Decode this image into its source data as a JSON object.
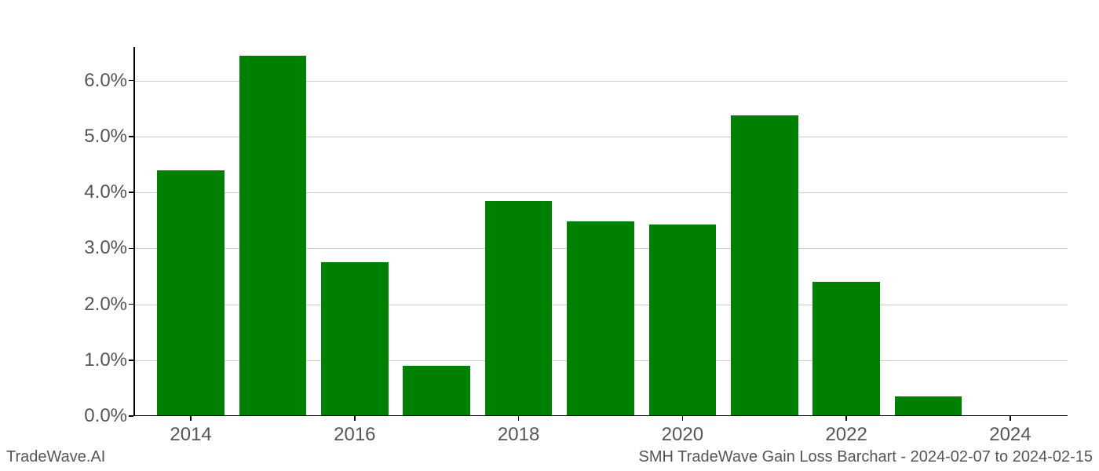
{
  "chart": {
    "type": "bar",
    "background_color": "#ffffff",
    "grid_color": "#cccccc",
    "axis_color": "#000000",
    "tick_label_color": "#555555",
    "tick_label_fontsize": 24,
    "footer_fontsize": 20,
    "ylim_min": 0.0,
    "ylim_max": 6.6,
    "y_ticks": [
      {
        "value": 0.0,
        "label": "0.0%"
      },
      {
        "value": 1.0,
        "label": "1.0%"
      },
      {
        "value": 2.0,
        "label": "2.0%"
      },
      {
        "value": 3.0,
        "label": "3.0%"
      },
      {
        "value": 4.0,
        "label": "4.0%"
      },
      {
        "value": 5.0,
        "label": "5.0%"
      },
      {
        "value": 6.0,
        "label": "6.0%"
      }
    ],
    "x_ticks": [
      {
        "year": 2014,
        "label": "2014"
      },
      {
        "year": 2016,
        "label": "2016"
      },
      {
        "year": 2018,
        "label": "2018"
      },
      {
        "year": 2020,
        "label": "2020"
      },
      {
        "year": 2022,
        "label": "2022"
      },
      {
        "year": 2024,
        "label": "2024"
      }
    ],
    "x_min_year": 2013.3,
    "x_max_year": 2024.7,
    "bar_color": "#008000",
    "bar_width_years": 0.82,
    "bars": [
      {
        "year": 2014,
        "value": 4.4
      },
      {
        "year": 2015,
        "value": 6.45
      },
      {
        "year": 2016,
        "value": 2.75
      },
      {
        "year": 2017,
        "value": 0.9
      },
      {
        "year": 2018,
        "value": 3.85
      },
      {
        "year": 2019,
        "value": 3.48
      },
      {
        "year": 2020,
        "value": 3.42
      },
      {
        "year": 2021,
        "value": 5.38
      },
      {
        "year": 2022,
        "value": 2.4
      },
      {
        "year": 2023,
        "value": 0.35
      }
    ],
    "footer_left": "TradeWave.AI",
    "footer_right": "SMH TradeWave Gain Loss Barchart - 2024-02-07 to 2024-02-15"
  }
}
